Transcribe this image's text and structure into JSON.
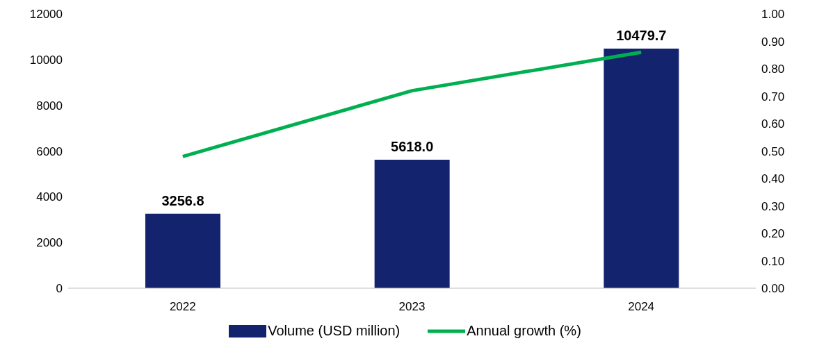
{
  "chart_data": {
    "type": "bar",
    "categories": [
      "2022",
      "2023",
      "2024"
    ],
    "series": [
      {
        "name": "Volume (USD million)",
        "color": "#14236e",
        "values": [
          3256.8,
          5618.0,
          10479.7
        ],
        "value_labels": [
          "3256.8",
          "5618.0",
          "10479.7"
        ]
      },
      {
        "name": "Annual growth (%)",
        "type": "line",
        "axis": "y2",
        "color": "#00b050",
        "values": [
          0.48,
          0.72,
          0.86
        ],
        "marker": "none"
      }
    ],
    "ylim": [
      0,
      12000
    ],
    "yticks": [
      0,
      2000,
      4000,
      6000,
      8000,
      10000,
      12000
    ],
    "y2lim": [
      0,
      1
    ],
    "y2ticks": [
      {
        "value": 0,
        "label": "0.00"
      },
      {
        "value": 0.1,
        "label": "0.10"
      },
      {
        "value": 0.2,
        "label": "0.20"
      },
      {
        "value": 0.3,
        "label": "0.30"
      },
      {
        "value": 0.4,
        "label": "0.40"
      },
      {
        "value": 0.5,
        "label": "0.50"
      },
      {
        "value": 0.6,
        "label": "0.60"
      },
      {
        "value": 0.7,
        "label": "0.70"
      },
      {
        "value": 0.8,
        "label": "0.80"
      },
      {
        "value": 0.9,
        "label": "0.90"
      },
      {
        "value": 1,
        "label": "1.00"
      }
    ],
    "grid": false,
    "legend": "bottom"
  }
}
